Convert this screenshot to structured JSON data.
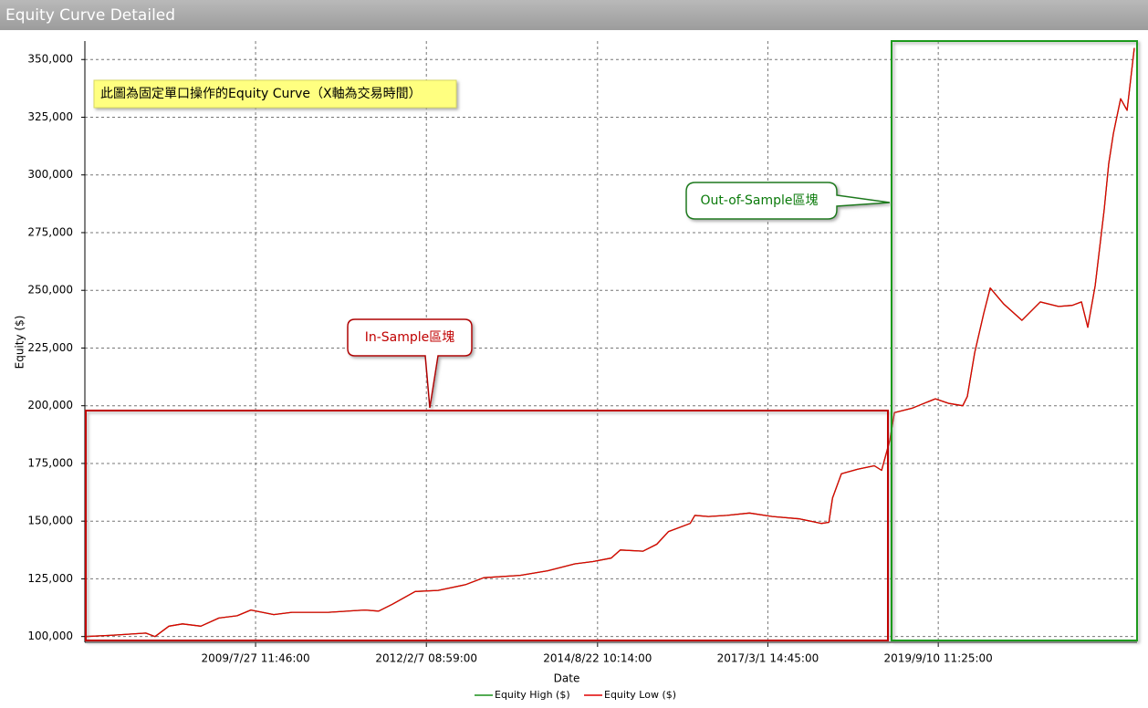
{
  "chart_data": {
    "type": "line",
    "title": "Equity Curve Detailed",
    "x_label": "Date",
    "y_label": "Equity ($)",
    "xlim": [
      "2007/1/15",
      "2022/8/22"
    ],
    "xticks": [
      "2009/7/27 11:46:00",
      "2012/2/7 08:59:00",
      "2014/8/22 10:14:00",
      "2017/3/1 14:45:00",
      "2019/9/10 11:25:00"
    ],
    "ylim": [
      97500,
      358000
    ],
    "yticks": [
      {
        "value": 100000,
        "label": "100,000"
      },
      {
        "value": 125000,
        "label": "125,000"
      },
      {
        "value": 150000,
        "label": "150,000"
      },
      {
        "value": 175000,
        "label": "175,000"
      },
      {
        "value": 200000,
        "label": "200,000"
      },
      {
        "value": 225000,
        "label": "225,000"
      },
      {
        "value": 250000,
        "label": "250,000"
      },
      {
        "value": 275000,
        "label": "275,000"
      },
      {
        "value": 300000,
        "label": "300,000"
      },
      {
        "value": 325000,
        "label": "325,000"
      },
      {
        "value": 350000,
        "label": "350,000"
      }
    ],
    "grid": true,
    "legend": "bottom",
    "x": [
      "2007/1/15",
      "2007/6/1",
      "2007/12/11",
      "2008/1/30",
      "2008/4/14",
      "2008/6/27",
      "2008/10/4",
      "2009/1/10",
      "2009/4/19",
      "2009/7/2",
      "2009/11/3",
      "2010/2/10",
      "2010/8/26",
      "2011/3/12",
      "2011/5/25",
      "2011/8/7",
      "2011/12/9",
      "2012/4/11",
      "2012/9/7",
      "2012/12/14",
      "2013/6/30",
      "2013/11/25",
      "2014/4/22",
      "2014/7/28",
      "2014/11/4",
      "2014/12/24",
      "2015/4/26",
      "2015/7/9",
      "2015/9/11",
      "2016/1/6",
      "2016/1/31",
      "2016/4/14",
      "2016/7/22",
      "2016/11/22",
      "2017/3/26",
      "2017/8/21",
      "2017/12/17",
      "2018/1/26",
      "2018/2/15",
      "2018/4/4",
      "2018/7/2",
      "2018/9/29",
      "2018/11/8",
      "2018/12/22",
      "2019/1/16",
      "2019/4/25",
      "2019/8/26",
      "2019/11/8",
      "2020/1/21",
      "2020/2/15",
      "2020/3/26",
      "2020/5/14",
      "2020/6/18",
      "2020/8/31",
      "2020/12/7",
      "2021/3/16",
      "2021/6/23",
      "2021/9/5",
      "2021/10/25",
      "2021/11/28",
      "2022/1/7",
      "2022/2/25",
      "2022/3/22",
      "2022/4/16",
      "2022/5/25",
      "2022/6/29",
      "2022/8/7"
    ],
    "series": [
      {
        "name": "Equity High ($)",
        "color": "#1a8f1a",
        "values": [
          100000,
          100500,
          101500,
          100000,
          104500,
          105500,
          104500,
          108000,
          109000,
          111500,
          109500,
          110500,
          110500,
          111500,
          111000,
          114000,
          119500,
          120000,
          122500,
          125500,
          126500,
          128500,
          131500,
          132500,
          134000,
          137500,
          137000,
          140000,
          145500,
          149000,
          152500,
          152000,
          152500,
          153500,
          152000,
          151000,
          149000,
          149500,
          160000,
          170500,
          172500,
          174000,
          172000,
          185000,
          197000,
          199000,
          203000,
          201000,
          200000,
          204000,
          223000,
          240000,
          251000,
          244000,
          237000,
          245000,
          243000,
          243500,
          245000,
          234000,
          252000,
          285000,
          305000,
          318000,
          333000,
          328000,
          355000
        ]
      },
      {
        "name": "Equity Low ($)",
        "color": "#e00000",
        "values": [
          100000,
          100500,
          101500,
          100000,
          104500,
          105500,
          104500,
          108000,
          109000,
          111500,
          109500,
          110500,
          110500,
          111500,
          111000,
          114000,
          119500,
          120000,
          122500,
          125500,
          126500,
          128500,
          131500,
          132500,
          134000,
          137500,
          137000,
          140000,
          145500,
          149000,
          152500,
          152000,
          152500,
          153500,
          152000,
          151000,
          149000,
          149500,
          160000,
          170500,
          172500,
          174000,
          172000,
          185000,
          197000,
          199000,
          203000,
          201000,
          200000,
          204000,
          223000,
          240000,
          251000,
          244000,
          237000,
          245000,
          243000,
          243500,
          245000,
          234000,
          252000,
          285000,
          305000,
          318000,
          333000,
          328000,
          355000
        ]
      }
    ],
    "annotations": [
      "此圖為固定單口操作的Equity Curve（X軸為交易時間）",
      "In-Sample區塊",
      "Out-of-Sample區塊"
    ]
  }
}
